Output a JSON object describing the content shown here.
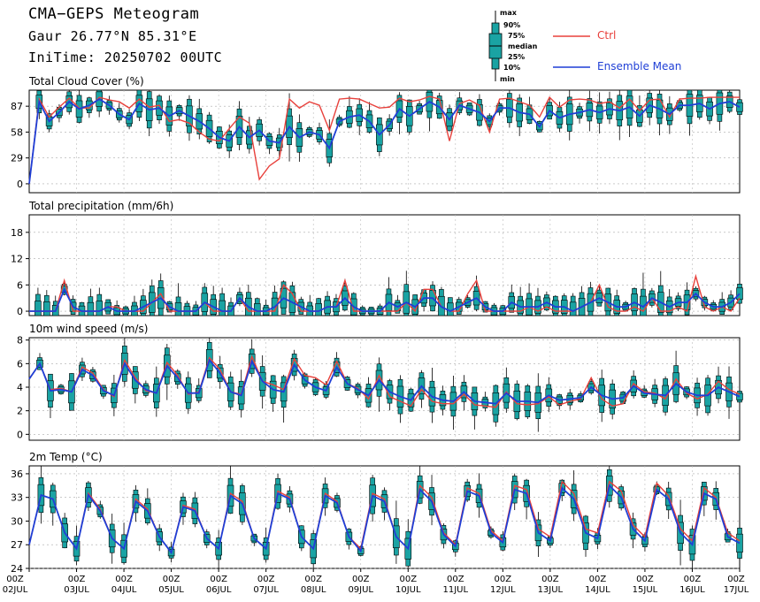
{
  "header": {
    "title": "CMA−GEPS Meteogram",
    "location": "Gaur 26.77°N 85.31°E",
    "init_time": "IniTime: 20250702 00UTC"
  },
  "legend": {
    "box_labels": [
      "max",
      "90%",
      "75%",
      "median",
      "25%",
      "10%",
      "min"
    ],
    "ctrl_label": "Ctrl",
    "mean_label": "Ensemble Mean",
    "ctrl_color": "#e8413c",
    "mean_color": "#1f3fd6",
    "box_color": "#1aa3a3"
  },
  "chart_data": [
    {
      "type": "line",
      "title": "Total Cloud Cover (%)",
      "yticks": [
        0,
        29,
        58,
        87
      ],
      "ylim": [
        -10,
        105
      ],
      "ctrl": [
        0,
        95,
        75,
        86,
        96,
        85,
        85,
        97,
        94,
        92,
        85,
        95,
        86,
        88,
        70,
        72,
        68,
        58,
        50,
        48,
        62,
        75,
        68,
        5,
        20,
        28,
        95,
        85,
        92,
        88,
        60,
        95,
        96,
        95,
        90,
        85,
        86,
        96,
        92,
        94,
        98,
        95,
        48,
        90,
        94,
        88,
        58,
        95,
        96,
        92,
        88,
        75,
        97,
        86,
        94,
        95,
        94,
        90,
        92,
        85,
        95,
        82,
        94,
        95,
        75,
        95,
        96,
        96,
        97,
        97,
        97,
        97
      ],
      "mean": [
        0,
        92,
        70,
        80,
        92,
        84,
        88,
        95,
        88,
        78,
        72,
        90,
        83,
        85,
        76,
        82,
        76,
        70,
        62,
        52,
        48,
        64,
        52,
        60,
        48,
        46,
        64,
        52,
        58,
        55,
        40,
        70,
        75,
        77,
        70,
        55,
        66,
        84,
        76,
        84,
        92,
        86,
        72,
        88,
        84,
        80,
        70,
        85,
        85,
        80,
        78,
        64,
        82,
        74,
        78,
        80,
        83,
        80,
        84,
        82,
        86,
        76,
        88,
        84,
        78,
        88,
        88,
        90,
        84,
        90,
        92,
        86
      ]
    },
    {
      "type": "line",
      "title": "Total precipitation (mm/6h)",
      "yticks": [
        0,
        6,
        12,
        18
      ],
      "ylim": [
        -1,
        22
      ],
      "ctrl": [
        0,
        0,
        0,
        0,
        7,
        0,
        0,
        0,
        0,
        1,
        1,
        0,
        0,
        0,
        2,
        4,
        0,
        0,
        0,
        0,
        2,
        0,
        0,
        0,
        3,
        0,
        0,
        0,
        0,
        6,
        4,
        0,
        0,
        0,
        1,
        1,
        7,
        0,
        0,
        0,
        0,
        0,
        0,
        2,
        0,
        5,
        5,
        1,
        0,
        0,
        4,
        7,
        0,
        0,
        0,
        0,
        0,
        1,
        0,
        1,
        0,
        0,
        0,
        1,
        2,
        6,
        1,
        0,
        0,
        1,
        0,
        3,
        0,
        0,
        1,
        0,
        8,
        1,
        0,
        1,
        0,
        3
      ],
      "mean": [
        0,
        0,
        0,
        0,
        5,
        1,
        0,
        0,
        0,
        1,
        0,
        0,
        0,
        1,
        2,
        3,
        1,
        0,
        0,
        0,
        2,
        1,
        0,
        0,
        3,
        1,
        0,
        0,
        1,
        3,
        2,
        1,
        0,
        0,
        1,
        1,
        3,
        1,
        0,
        0,
        0,
        2,
        1,
        2,
        1,
        3,
        3,
        1,
        0,
        1,
        2,
        3,
        1,
        0,
        0,
        2,
        1,
        1,
        1,
        2,
        1,
        1,
        0,
        1,
        2,
        3,
        2,
        1,
        1,
        2,
        1,
        3,
        2,
        1,
        2,
        2,
        4,
        2,
        1,
        1,
        2,
        4
      ]
    },
    {
      "type": "line",
      "title": "10m wind speed (m/s)",
      "yticks": [
        0,
        2,
        4,
        6,
        8
      ],
      "ylim": [
        -0.5,
        8.2
      ],
      "ctrl": [
        4.7,
        6.0,
        3.8,
        3.9,
        3.6,
        5.7,
        5.2,
        3.8,
        3.2,
        6.3,
        4.8,
        3.7,
        3.5,
        6.1,
        5.0,
        3.4,
        3.6,
        6.5,
        5.5,
        3.6,
        3.4,
        6.6,
        4.5,
        4.2,
        3.8,
        6.4,
        5.0,
        4.8,
        4.2,
        6.2,
        4.3,
        3.9,
        3.0,
        5.0,
        3.2,
        2.8,
        2.4,
        3.8,
        2.8,
        2.6,
        2.6,
        3.4,
        2.5,
        2.4,
        2.3,
        3.6,
        2.6,
        2.5,
        2.6,
        3.2,
        2.5,
        2.8,
        3.0,
        4.8,
        3.0,
        2.4,
        2.6,
        4.3,
        3.6,
        3.5,
        3.0,
        4.7,
        3.5,
        3.0,
        3.4,
        4.5,
        3.8,
        3.4
      ],
      "mean": [
        4.7,
        6.0,
        3.7,
        3.8,
        3.6,
        5.5,
        5.0,
        3.7,
        3.3,
        6.0,
        4.6,
        3.8,
        3.5,
        5.8,
        4.8,
        3.5,
        3.5,
        6.3,
        5.2,
        3.6,
        3.3,
        6.2,
        4.5,
        3.8,
        3.6,
        5.9,
        4.6,
        4.0,
        3.7,
        5.7,
        4.3,
        3.8,
        3.3,
        4.6,
        3.6,
        3.2,
        2.9,
        4.1,
        3.2,
        2.9,
        2.8,
        3.6,
        2.8,
        2.7,
        2.6,
        3.5,
        2.8,
        2.8,
        2.7,
        3.3,
        2.9,
        3.0,
        3.1,
        4.0,
        3.3,
        3.0,
        3.1,
        4.1,
        3.5,
        3.4,
        3.3,
        4.3,
        3.6,
        3.3,
        3.3,
        4.0,
        3.6,
        3.2
      ]
    },
    {
      "type": "line",
      "title": "2m Temp (°C)",
      "yticks": [
        24,
        27,
        30,
        33,
        36
      ],
      "ylim": [
        24,
        37
      ],
      "ctrl": [
        27.0,
        33.3,
        32.8,
        28.5,
        26.5,
        33.5,
        31.5,
        27.8,
        26.5,
        32.8,
        31.5,
        28.0,
        26.0,
        32.0,
        31.5,
        27.8,
        26.5,
        33.5,
        32.5,
        27.8,
        26.5,
        33.8,
        33.0,
        28.0,
        26.5,
        33.5,
        32.5,
        28.0,
        26.5,
        33.5,
        32.8,
        28.0,
        26.5,
        34.5,
        33.0,
        28.5,
        27.0,
        34.2,
        33.5,
        28.8,
        27.5,
        34.5,
        34.0,
        29.0,
        28.0,
        35.0,
        33.5,
        29.0,
        28.5,
        35.0,
        33.8,
        29.5,
        28.0,
        34.8,
        33.2,
        29.0,
        27.5,
        34.2,
        33.0,
        28.5,
        27.5
      ],
      "mean": [
        27.0,
        33.3,
        32.8,
        28.5,
        26.5,
        33.3,
        31.3,
        27.8,
        26.5,
        32.5,
        31.3,
        28.0,
        26.0,
        31.8,
        31.3,
        27.8,
        26.5,
        33.2,
        32.2,
        27.8,
        26.5,
        33.5,
        32.8,
        28.0,
        26.5,
        33.2,
        32.3,
        28.0,
        26.2,
        33.2,
        32.5,
        28.0,
        26.5,
        34.0,
        32.5,
        28.3,
        26.8,
        33.8,
        33.2,
        28.5,
        27.3,
        34.0,
        33.5,
        28.5,
        27.5,
        34.2,
        32.8,
        28.5,
        27.8,
        34.5,
        33.0,
        29.0,
        27.5,
        34.0,
        32.8,
        28.5,
        27.0,
        33.5,
        32.8,
        28.0,
        27.2
      ]
    }
  ],
  "x_axis": {
    "ticks": [
      {
        "hour": "00Z",
        "date": "02JUL"
      },
      {
        "hour": "00Z",
        "date": "03JUL"
      },
      {
        "hour": "00Z",
        "date": "04JUL"
      },
      {
        "hour": "00Z",
        "date": "05JUL"
      },
      {
        "hour": "00Z",
        "date": "06JUL"
      },
      {
        "hour": "00Z",
        "date": "07JUL"
      },
      {
        "hour": "00Z",
        "date": "08JUL"
      },
      {
        "hour": "00Z",
        "date": "09JUL"
      },
      {
        "hour": "00Z",
        "date": "10JUL"
      },
      {
        "hour": "00Z",
        "date": "11JUL"
      },
      {
        "hour": "00Z",
        "date": "12JUL"
      },
      {
        "hour": "00Z",
        "date": "13JUL"
      },
      {
        "hour": "00Z",
        "date": "14JUL"
      },
      {
        "hour": "00Z",
        "date": "15JUL"
      },
      {
        "hour": "00Z",
        "date": "16JUL"
      },
      {
        "hour": "00Z",
        "date": "17JUL"
      }
    ]
  }
}
